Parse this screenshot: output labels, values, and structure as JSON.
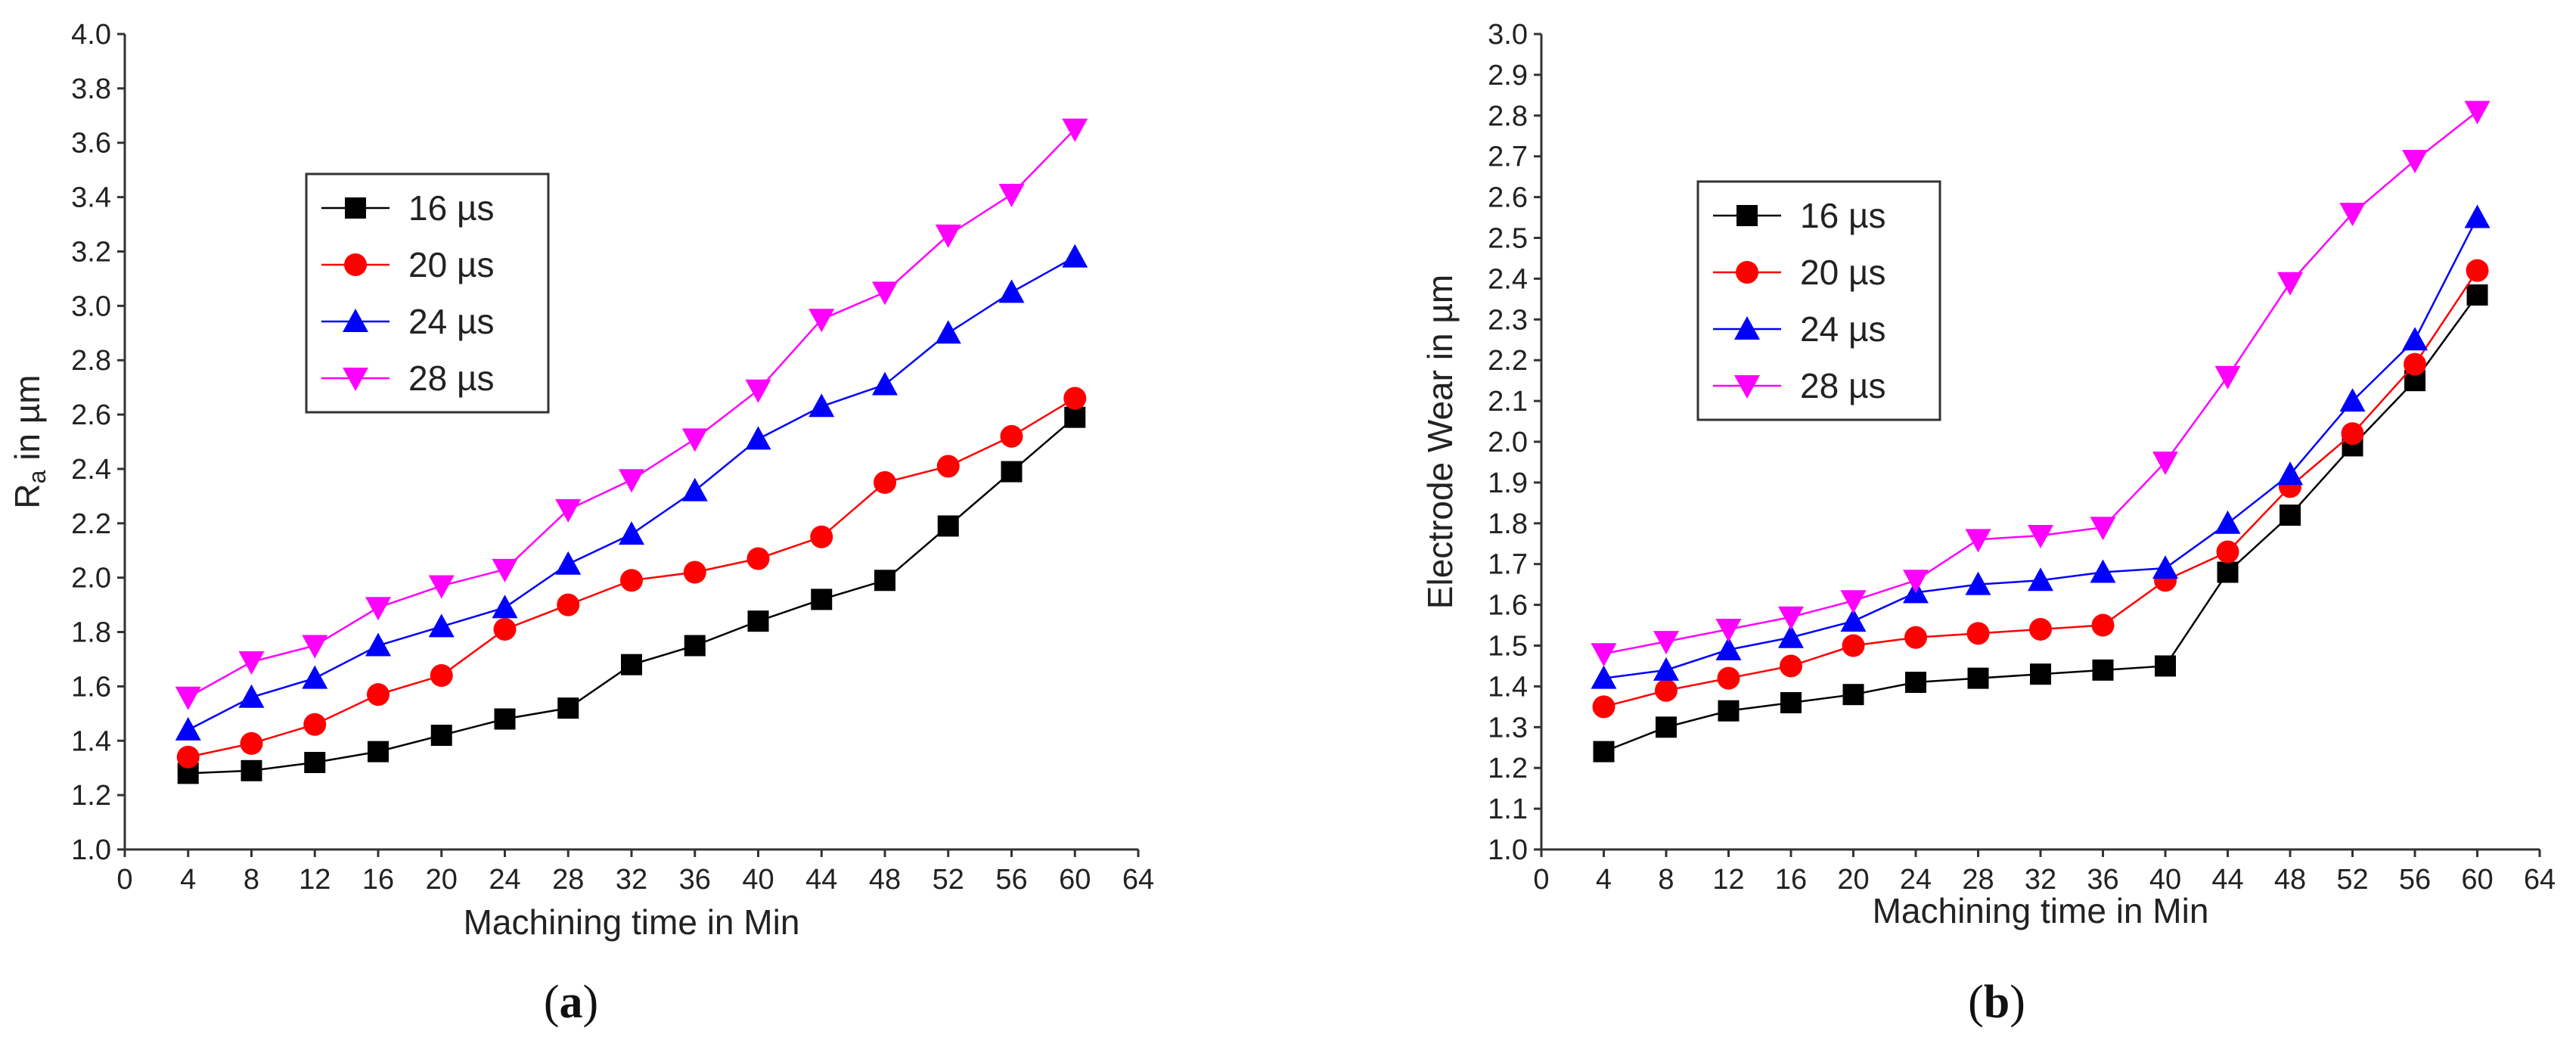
{
  "figure": {
    "caption_a": {
      "open": "(",
      "letter": "a",
      "close": ")"
    },
    "caption_b": {
      "open": "(",
      "letter": "b",
      "close": ")"
    }
  },
  "chart_data": [
    {
      "type": "line",
      "panel": "a",
      "title": "",
      "xlabel": "Machining time in Min",
      "ylabel_main": "R",
      "ylabel_sub": "a",
      "ylabel_rest": " in µm",
      "xlim": [
        0,
        64
      ],
      "ylim": [
        1.0,
        4.0
      ],
      "xticks": [
        "0",
        "4",
        "8",
        "12",
        "16",
        "20",
        "24",
        "28",
        "32",
        "36",
        "40",
        "44",
        "48",
        "52",
        "56",
        "60",
        "64"
      ],
      "yticks": [
        "1.0",
        "1.2",
        "1.4",
        "1.6",
        "1.8",
        "2.0",
        "2.2",
        "2.4",
        "2.6",
        "2.8",
        "3.0",
        "3.2",
        "3.4",
        "3.6",
        "3.8",
        "4.0"
      ],
      "legend_position": "top-left",
      "x": [
        4,
        8,
        12,
        16,
        20,
        24,
        28,
        32,
        36,
        40,
        44,
        48,
        52,
        56,
        60
      ],
      "series": [
        {
          "name": "16 µs",
          "color": "#000000",
          "marker": "square",
          "values": [
            1.28,
            1.29,
            1.32,
            1.36,
            1.42,
            1.48,
            1.52,
            1.68,
            1.75,
            1.84,
            1.92,
            1.99,
            2.19,
            2.39,
            2.59
          ]
        },
        {
          "name": "20 µs",
          "color": "#ff0000",
          "marker": "circle",
          "values": [
            1.34,
            1.39,
            1.46,
            1.57,
            1.64,
            1.81,
            1.9,
            1.99,
            2.02,
            2.07,
            2.15,
            2.35,
            2.41,
            2.52,
            2.66
          ]
        },
        {
          "name": "24 µs",
          "color": "#0000ff",
          "marker": "triangle-up",
          "values": [
            1.44,
            1.56,
            1.63,
            1.75,
            1.82,
            1.89,
            2.05,
            2.16,
            2.32,
            2.51,
            2.63,
            2.71,
            2.9,
            3.05,
            3.18
          ]
        },
        {
          "name": "28 µs",
          "color": "#ff00ff",
          "marker": "triangle-down",
          "values": [
            1.56,
            1.69,
            1.75,
            1.89,
            1.97,
            2.03,
            2.25,
            2.36,
            2.51,
            2.69,
            2.95,
            3.05,
            3.26,
            3.41,
            3.65
          ]
        }
      ]
    },
    {
      "type": "line",
      "panel": "b",
      "title": "",
      "xlabel": "Machining time in Min",
      "ylabel_main": "Electrode Wear in µm",
      "ylabel_sub": "",
      "ylabel_rest": "",
      "xlim": [
        0,
        64
      ],
      "ylim": [
        1.0,
        3.0
      ],
      "xticks": [
        "0",
        "4",
        "8",
        "12",
        "16",
        "20",
        "24",
        "28",
        "32",
        "36",
        "40",
        "44",
        "48",
        "52",
        "56",
        "60",
        "64"
      ],
      "yticks": [
        "1.0",
        "1.1",
        "1.2",
        "1.3",
        "1.4",
        "1.5",
        "1.6",
        "1.7",
        "1.8",
        "1.9",
        "2.0",
        "2.1",
        "2.2",
        "2.3",
        "2.4",
        "2.5",
        "2.6",
        "2.7",
        "2.8",
        "2.9",
        "3.0"
      ],
      "legend_position": "top-left",
      "x": [
        4,
        8,
        12,
        16,
        20,
        24,
        28,
        32,
        36,
        40,
        44,
        48,
        52,
        56,
        60
      ],
      "series": [
        {
          "name": "16 µs",
          "color": "#000000",
          "marker": "square",
          "values": [
            1.24,
            1.3,
            1.34,
            1.36,
            1.38,
            1.41,
            1.42,
            1.43,
            1.44,
            1.45,
            1.68,
            1.82,
            1.99,
            2.15,
            2.36
          ]
        },
        {
          "name": "20 µs",
          "color": "#ff0000",
          "marker": "circle",
          "values": [
            1.35,
            1.39,
            1.42,
            1.45,
            1.5,
            1.52,
            1.53,
            1.54,
            1.55,
            1.66,
            1.73,
            1.89,
            2.02,
            2.19,
            2.42
          ]
        },
        {
          "name": "24 µs",
          "color": "#0000ff",
          "marker": "triangle-up",
          "values": [
            1.42,
            1.44,
            1.49,
            1.52,
            1.56,
            1.63,
            1.65,
            1.66,
            1.68,
            1.69,
            1.8,
            1.92,
            2.1,
            2.25,
            2.55
          ]
        },
        {
          "name": "28 µs",
          "color": "#ff00ff",
          "marker": "triangle-down",
          "values": [
            1.48,
            1.51,
            1.54,
            1.57,
            1.61,
            1.66,
            1.76,
            1.77,
            1.79,
            1.95,
            2.16,
            2.39,
            2.56,
            2.69,
            2.81
          ]
        }
      ]
    }
  ]
}
